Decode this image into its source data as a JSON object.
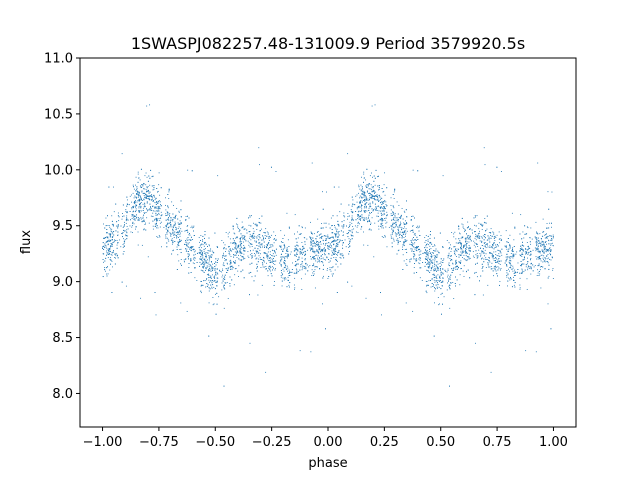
{
  "chart_data": {
    "type": "scatter",
    "title": "1SWASPJ082257.48-131009.9 Period 3579920.5s",
    "xlabel": "phase",
    "ylabel": "flux",
    "xlim": [
      -1.1,
      1.1
    ],
    "ylim": [
      7.7,
      11.0
    ],
    "xticks": [
      -1.0,
      -0.75,
      -0.5,
      -0.25,
      0.0,
      0.25,
      0.5,
      0.75,
      1.0
    ],
    "xtick_labels": [
      "−1.00",
      "−0.75",
      "−0.50",
      "−0.25",
      "0.00",
      "0.25",
      "0.50",
      "0.75",
      "1.00"
    ],
    "yticks": [
      8.0,
      8.5,
      9.0,
      9.5,
      10.0,
      10.5,
      11.0
    ],
    "ytick_labels": [
      "8.0",
      "8.5",
      "9.0",
      "9.5",
      "10.0",
      "10.5",
      "11.0"
    ],
    "grid": false,
    "marker_color": "#1f77b4",
    "profile": {
      "phase": [
        0.0,
        0.05,
        0.1,
        0.15,
        0.2,
        0.25,
        0.3,
        0.35,
        0.4,
        0.45,
        0.5,
        0.55,
        0.6,
        0.65,
        0.7,
        0.75,
        0.8,
        0.85,
        0.9,
        0.95,
        1.0
      ],
      "flux": [
        9.3,
        9.35,
        9.5,
        9.7,
        9.75,
        9.6,
        9.5,
        9.4,
        9.3,
        9.2,
        9.05,
        9.15,
        9.3,
        9.35,
        9.3,
        9.25,
        9.2,
        9.2,
        9.25,
        9.3,
        9.3
      ]
    },
    "gap_phases": [
      0.08,
      0.12,
      0.27,
      0.36,
      0.42,
      0.52,
      0.64,
      0.78,
      0.84,
      0.91
    ]
  }
}
